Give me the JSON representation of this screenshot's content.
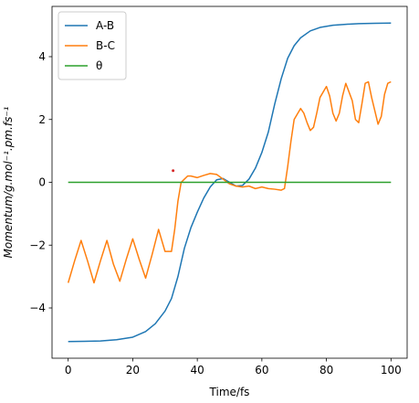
{
  "chart_data": {
    "type": "line",
    "xlabel": "Time/fs",
    "ylabel": "Momentum/g.mol⁻¹.pm.fs⁻¹",
    "xlim": [
      -5,
      105
    ],
    "ylim": [
      -5.6,
      5.6
    ],
    "xticks": [
      0,
      20,
      40,
      60,
      80,
      100
    ],
    "yticks": [
      -4,
      -2,
      0,
      2,
      4
    ],
    "xtick_labels": [
      "0",
      "20",
      "40",
      "60",
      "80",
      "100"
    ],
    "ytick_labels": [
      "−4",
      "−2",
      "0",
      "2",
      "4"
    ],
    "legend_position": "top-left",
    "series": [
      {
        "name": "A-B",
        "color": "#1f77b4",
        "x": [
          0,
          5,
          10,
          15,
          20,
          24,
          27,
          30,
          32,
          34,
          36,
          38,
          40,
          42,
          44,
          46,
          48,
          50,
          52,
          54,
          56,
          58,
          60,
          62,
          64,
          66,
          68,
          70,
          72,
          75,
          78,
          82,
          86,
          90,
          95,
          100
        ],
        "y": [
          -5.07,
          -5.06,
          -5.05,
          -5.01,
          -4.93,
          -4.75,
          -4.5,
          -4.1,
          -3.7,
          -3.0,
          -2.1,
          -1.45,
          -0.95,
          -0.5,
          -0.15,
          0.08,
          0.12,
          0.0,
          -0.12,
          -0.1,
          0.1,
          0.45,
          0.95,
          1.6,
          2.5,
          3.3,
          3.95,
          4.35,
          4.6,
          4.82,
          4.93,
          5.0,
          5.03,
          5.05,
          5.06,
          5.07
        ]
      },
      {
        "name": "B-C",
        "color": "#ff7f0e",
        "x": [
          0,
          2,
          4,
          6,
          8,
          10,
          12,
          14,
          16,
          18,
          20,
          22,
          24,
          26,
          28,
          30,
          32,
          33,
          34,
          35,
          36,
          37,
          38,
          40,
          42,
          44,
          46,
          48,
          50,
          52,
          54,
          56,
          58,
          60,
          62,
          64,
          66,
          67,
          68,
          69,
          70,
          72,
          73,
          74,
          75,
          76,
          77,
          78,
          80,
          81,
          82,
          83,
          84,
          85,
          86,
          88,
          89,
          90,
          91,
          92,
          93,
          94,
          96,
          97,
          98,
          99,
          100
        ],
        "y": [
          -3.2,
          -2.5,
          -1.85,
          -2.5,
          -3.2,
          -2.5,
          -1.85,
          -2.6,
          -3.15,
          -2.45,
          -1.8,
          -2.45,
          -3.05,
          -2.3,
          -1.5,
          -2.2,
          -2.2,
          -1.5,
          -0.6,
          0.0,
          0.1,
          0.2,
          0.2,
          0.15,
          0.22,
          0.28,
          0.25,
          0.1,
          -0.05,
          -0.12,
          -0.15,
          -0.12,
          -0.2,
          -0.15,
          -0.2,
          -0.22,
          -0.25,
          -0.2,
          0.5,
          1.3,
          2.0,
          2.35,
          2.2,
          1.9,
          1.65,
          1.75,
          2.2,
          2.7,
          3.05,
          2.75,
          2.2,
          1.95,
          2.2,
          2.75,
          3.15,
          2.6,
          2.0,
          1.9,
          2.5,
          3.15,
          3.2,
          2.7,
          1.85,
          2.1,
          2.8,
          3.15,
          3.2
        ]
      },
      {
        "name": "θ",
        "color": "#2ca02c",
        "x": [
          0,
          100
        ],
        "y": [
          0,
          0
        ]
      }
    ],
    "markers": [
      {
        "x": 32.5,
        "y": 0.37,
        "color": "#d62728"
      }
    ]
  }
}
